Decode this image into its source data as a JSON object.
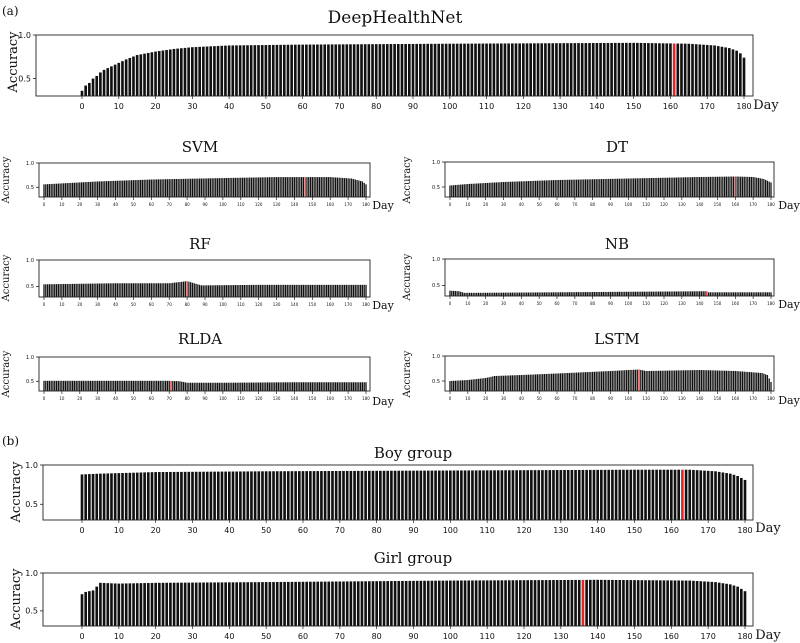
{
  "panel_labels": {
    "a": "(a)",
    "b": "(b)"
  },
  "chart_data": [
    {
      "type": "bar",
      "title": "DeepHealthNet",
      "xlabel": "Day",
      "ylabel": "Accuracy",
      "xlim": [
        0,
        180
      ],
      "ylim": [
        0.3,
        1.0
      ],
      "xticks": [
        "0",
        "10",
        "20",
        "30",
        "40",
        "50",
        "60",
        "70",
        "80",
        "90",
        "100",
        "110",
        "120",
        "130",
        "140",
        "150",
        "160",
        "170",
        "180"
      ],
      "yticks": [
        "0.5",
        "1.0"
      ],
      "highlight_color": "#e8262a",
      "highlight_day": 161,
      "profile": [
        [
          0,
          0.36
        ],
        [
          1,
          0.42
        ],
        [
          2,
          0.45
        ],
        [
          3,
          0.5
        ],
        [
          4,
          0.53
        ],
        [
          5,
          0.57
        ],
        [
          6,
          0.6
        ],
        [
          7,
          0.62
        ],
        [
          8,
          0.64
        ],
        [
          10,
          0.68
        ],
        [
          12,
          0.72
        ],
        [
          15,
          0.77
        ],
        [
          20,
          0.81
        ],
        [
          25,
          0.84
        ],
        [
          30,
          0.86
        ],
        [
          40,
          0.88
        ],
        [
          60,
          0.89
        ],
        [
          100,
          0.9
        ],
        [
          150,
          0.91
        ],
        [
          165,
          0.9
        ],
        [
          172,
          0.88
        ],
        [
          176,
          0.85
        ],
        [
          178,
          0.82
        ],
        [
          179,
          0.79
        ],
        [
          180,
          0.74
        ]
      ]
    },
    {
      "type": "bar",
      "title": "SVM",
      "xlabel": "Day",
      "ylabel": "Accuracy",
      "xlim": [
        0,
        180
      ],
      "ylim": [
        0.3,
        1.0
      ],
      "xticks": [
        "0",
        "10",
        "20",
        "30",
        "40",
        "50",
        "60",
        "70",
        "80",
        "90",
        "100",
        "110",
        "120",
        "130",
        "140",
        "150",
        "160",
        "170",
        "180"
      ],
      "yticks": [
        "0.5",
        "1.0"
      ],
      "highlight_color": "#e8262a",
      "highlight_day": 146,
      "profile": [
        [
          0,
          0.56
        ],
        [
          10,
          0.58
        ],
        [
          30,
          0.62
        ],
        [
          60,
          0.66
        ],
        [
          100,
          0.69
        ],
        [
          130,
          0.71
        ],
        [
          160,
          0.71
        ],
        [
          172,
          0.68
        ],
        [
          178,
          0.62
        ],
        [
          180,
          0.56
        ]
      ]
    },
    {
      "type": "bar",
      "title": "DT",
      "xlabel": "Day",
      "ylabel": "Accuracy",
      "xlim": [
        0,
        180
      ],
      "ylim": [
        0.3,
        1.0
      ],
      "xticks": [
        "0",
        "10",
        "20",
        "30",
        "40",
        "50",
        "60",
        "70",
        "80",
        "90",
        "100",
        "110",
        "120",
        "130",
        "140",
        "150",
        "160",
        "170",
        "180"
      ],
      "yticks": [
        "0.5",
        "1.0"
      ],
      "highlight_color": "#e8262a",
      "highlight_day": 160,
      "profile": [
        [
          0,
          0.53
        ],
        [
          10,
          0.56
        ],
        [
          30,
          0.6
        ],
        [
          60,
          0.64
        ],
        [
          100,
          0.67
        ],
        [
          140,
          0.7
        ],
        [
          160,
          0.71
        ],
        [
          170,
          0.7
        ],
        [
          176,
          0.66
        ],
        [
          180,
          0.59
        ]
      ]
    },
    {
      "type": "bar",
      "title": "RF",
      "xlabel": "Day",
      "ylabel": "Accuracy",
      "xlim": [
        0,
        180
      ],
      "ylim": [
        0.3,
        1.0
      ],
      "xticks": [
        "0",
        "10",
        "20",
        "30",
        "40",
        "50",
        "60",
        "70",
        "80",
        "90",
        "100",
        "110",
        "120",
        "130",
        "140",
        "150",
        "160",
        "170",
        "180"
      ],
      "yticks": [
        "0.5",
        "1.0"
      ],
      "highlight_color": "#e8262a",
      "highlight_day": 80,
      "profile": [
        [
          0,
          0.54
        ],
        [
          20,
          0.55
        ],
        [
          40,
          0.56
        ],
        [
          70,
          0.56
        ],
        [
          80,
          0.6
        ],
        [
          84,
          0.56
        ],
        [
          88,
          0.52
        ],
        [
          120,
          0.53
        ],
        [
          180,
          0.53
        ]
      ]
    },
    {
      "type": "bar",
      "title": "NB",
      "xlabel": "Day",
      "ylabel": "Accuracy",
      "xlim": [
        0,
        180
      ],
      "ylim": [
        0.3,
        1.0
      ],
      "xticks": [
        "0",
        "10",
        "20",
        "30",
        "40",
        "50",
        "60",
        "70",
        "80",
        "90",
        "100",
        "110",
        "120",
        "130",
        "140",
        "150",
        "160",
        "170",
        "180"
      ],
      "yticks": [
        "0.5",
        "1.0"
      ],
      "highlight_color": "#e8262a",
      "highlight_day": 144,
      "profile": [
        [
          0,
          0.4
        ],
        [
          5,
          0.39
        ],
        [
          8,
          0.36
        ],
        [
          15,
          0.36
        ],
        [
          60,
          0.37
        ],
        [
          100,
          0.38
        ],
        [
          144,
          0.39
        ],
        [
          145,
          0.37
        ],
        [
          180,
          0.37
        ]
      ]
    },
    {
      "type": "bar",
      "title": "RLDA",
      "xlabel": "Day",
      "ylabel": "Accuracy",
      "xlim": [
        0,
        180
      ],
      "ylim": [
        0.3,
        1.0
      ],
      "xticks": [
        "0",
        "10",
        "20",
        "30",
        "40",
        "50",
        "60",
        "70",
        "80",
        "90",
        "100",
        "110",
        "120",
        "130",
        "140",
        "150",
        "160",
        "170",
        "180"
      ],
      "yticks": [
        "0.5",
        "1.0"
      ],
      "highlight_color": "#e8262a",
      "highlight_day": 71,
      "profile": [
        [
          0,
          0.51
        ],
        [
          40,
          0.51
        ],
        [
          70,
          0.51
        ],
        [
          76,
          0.5
        ],
        [
          80,
          0.47
        ],
        [
          100,
          0.47
        ],
        [
          140,
          0.48
        ],
        [
          180,
          0.48
        ]
      ]
    },
    {
      "type": "bar",
      "title": "LSTM",
      "xlabel": "Day",
      "ylabel": "Accuracy",
      "xlim": [
        0,
        180
      ],
      "ylim": [
        0.3,
        1.0
      ],
      "xticks": [
        "0",
        "10",
        "20",
        "30",
        "40",
        "50",
        "60",
        "70",
        "80",
        "90",
        "100",
        "110",
        "120",
        "130",
        "140",
        "150",
        "160",
        "170",
        "180"
      ],
      "yticks": [
        "0.5",
        "1.0"
      ],
      "highlight_color": "#e8262a",
      "highlight_day": 106,
      "profile": [
        [
          0,
          0.5
        ],
        [
          10,
          0.52
        ],
        [
          20,
          0.56
        ],
        [
          25,
          0.6
        ],
        [
          40,
          0.62
        ],
        [
          60,
          0.65
        ],
        [
          90,
          0.7
        ],
        [
          106,
          0.73
        ],
        [
          110,
          0.7
        ],
        [
          140,
          0.72
        ],
        [
          160,
          0.7
        ],
        [
          175,
          0.66
        ],
        [
          178,
          0.62
        ],
        [
          180,
          0.48
        ]
      ]
    },
    {
      "type": "bar",
      "title": "Boy group",
      "xlabel": "Day",
      "ylabel": "Accuracy",
      "xlim": [
        0,
        180
      ],
      "ylim": [
        0.3,
        1.0
      ],
      "xticks": [
        "0",
        "10",
        "20",
        "30",
        "40",
        "50",
        "60",
        "70",
        "80",
        "90",
        "100",
        "110",
        "120",
        "130",
        "140",
        "150",
        "160",
        "170",
        "180"
      ],
      "yticks": [
        "0.5",
        "1.0"
      ],
      "highlight_color": "#e8262a",
      "highlight_day": 163,
      "profile": [
        [
          0,
          0.88
        ],
        [
          5,
          0.89
        ],
        [
          20,
          0.91
        ],
        [
          50,
          0.92
        ],
        [
          100,
          0.93
        ],
        [
          150,
          0.94
        ],
        [
          165,
          0.94
        ],
        [
          172,
          0.92
        ],
        [
          176,
          0.89
        ],
        [
          178,
          0.86
        ],
        [
          180,
          0.81
        ]
      ]
    },
    {
      "type": "bar",
      "title": "Girl group",
      "xlabel": "Day",
      "ylabel": "Accuracy",
      "xlim": [
        0,
        180
      ],
      "ylim": [
        0.3,
        1.0
      ],
      "xticks": [
        "0",
        "10",
        "20",
        "30",
        "40",
        "50",
        "60",
        "70",
        "80",
        "90",
        "100",
        "110",
        "120",
        "130",
        "140",
        "150",
        "160",
        "170",
        "180"
      ],
      "yticks": [
        "0.5",
        "1.0"
      ],
      "highlight_color": "#e8262a",
      "highlight_day": 136,
      "profile": [
        [
          0,
          0.72
        ],
        [
          1,
          0.75
        ],
        [
          2,
          0.76
        ],
        [
          3,
          0.77
        ],
        [
          5,
          0.87
        ],
        [
          10,
          0.86
        ],
        [
          20,
          0.87
        ],
        [
          50,
          0.88
        ],
        [
          100,
          0.9
        ],
        [
          140,
          0.91
        ],
        [
          165,
          0.9
        ],
        [
          172,
          0.88
        ],
        [
          176,
          0.85
        ],
        [
          178,
          0.82
        ],
        [
          180,
          0.76
        ]
      ]
    }
  ]
}
